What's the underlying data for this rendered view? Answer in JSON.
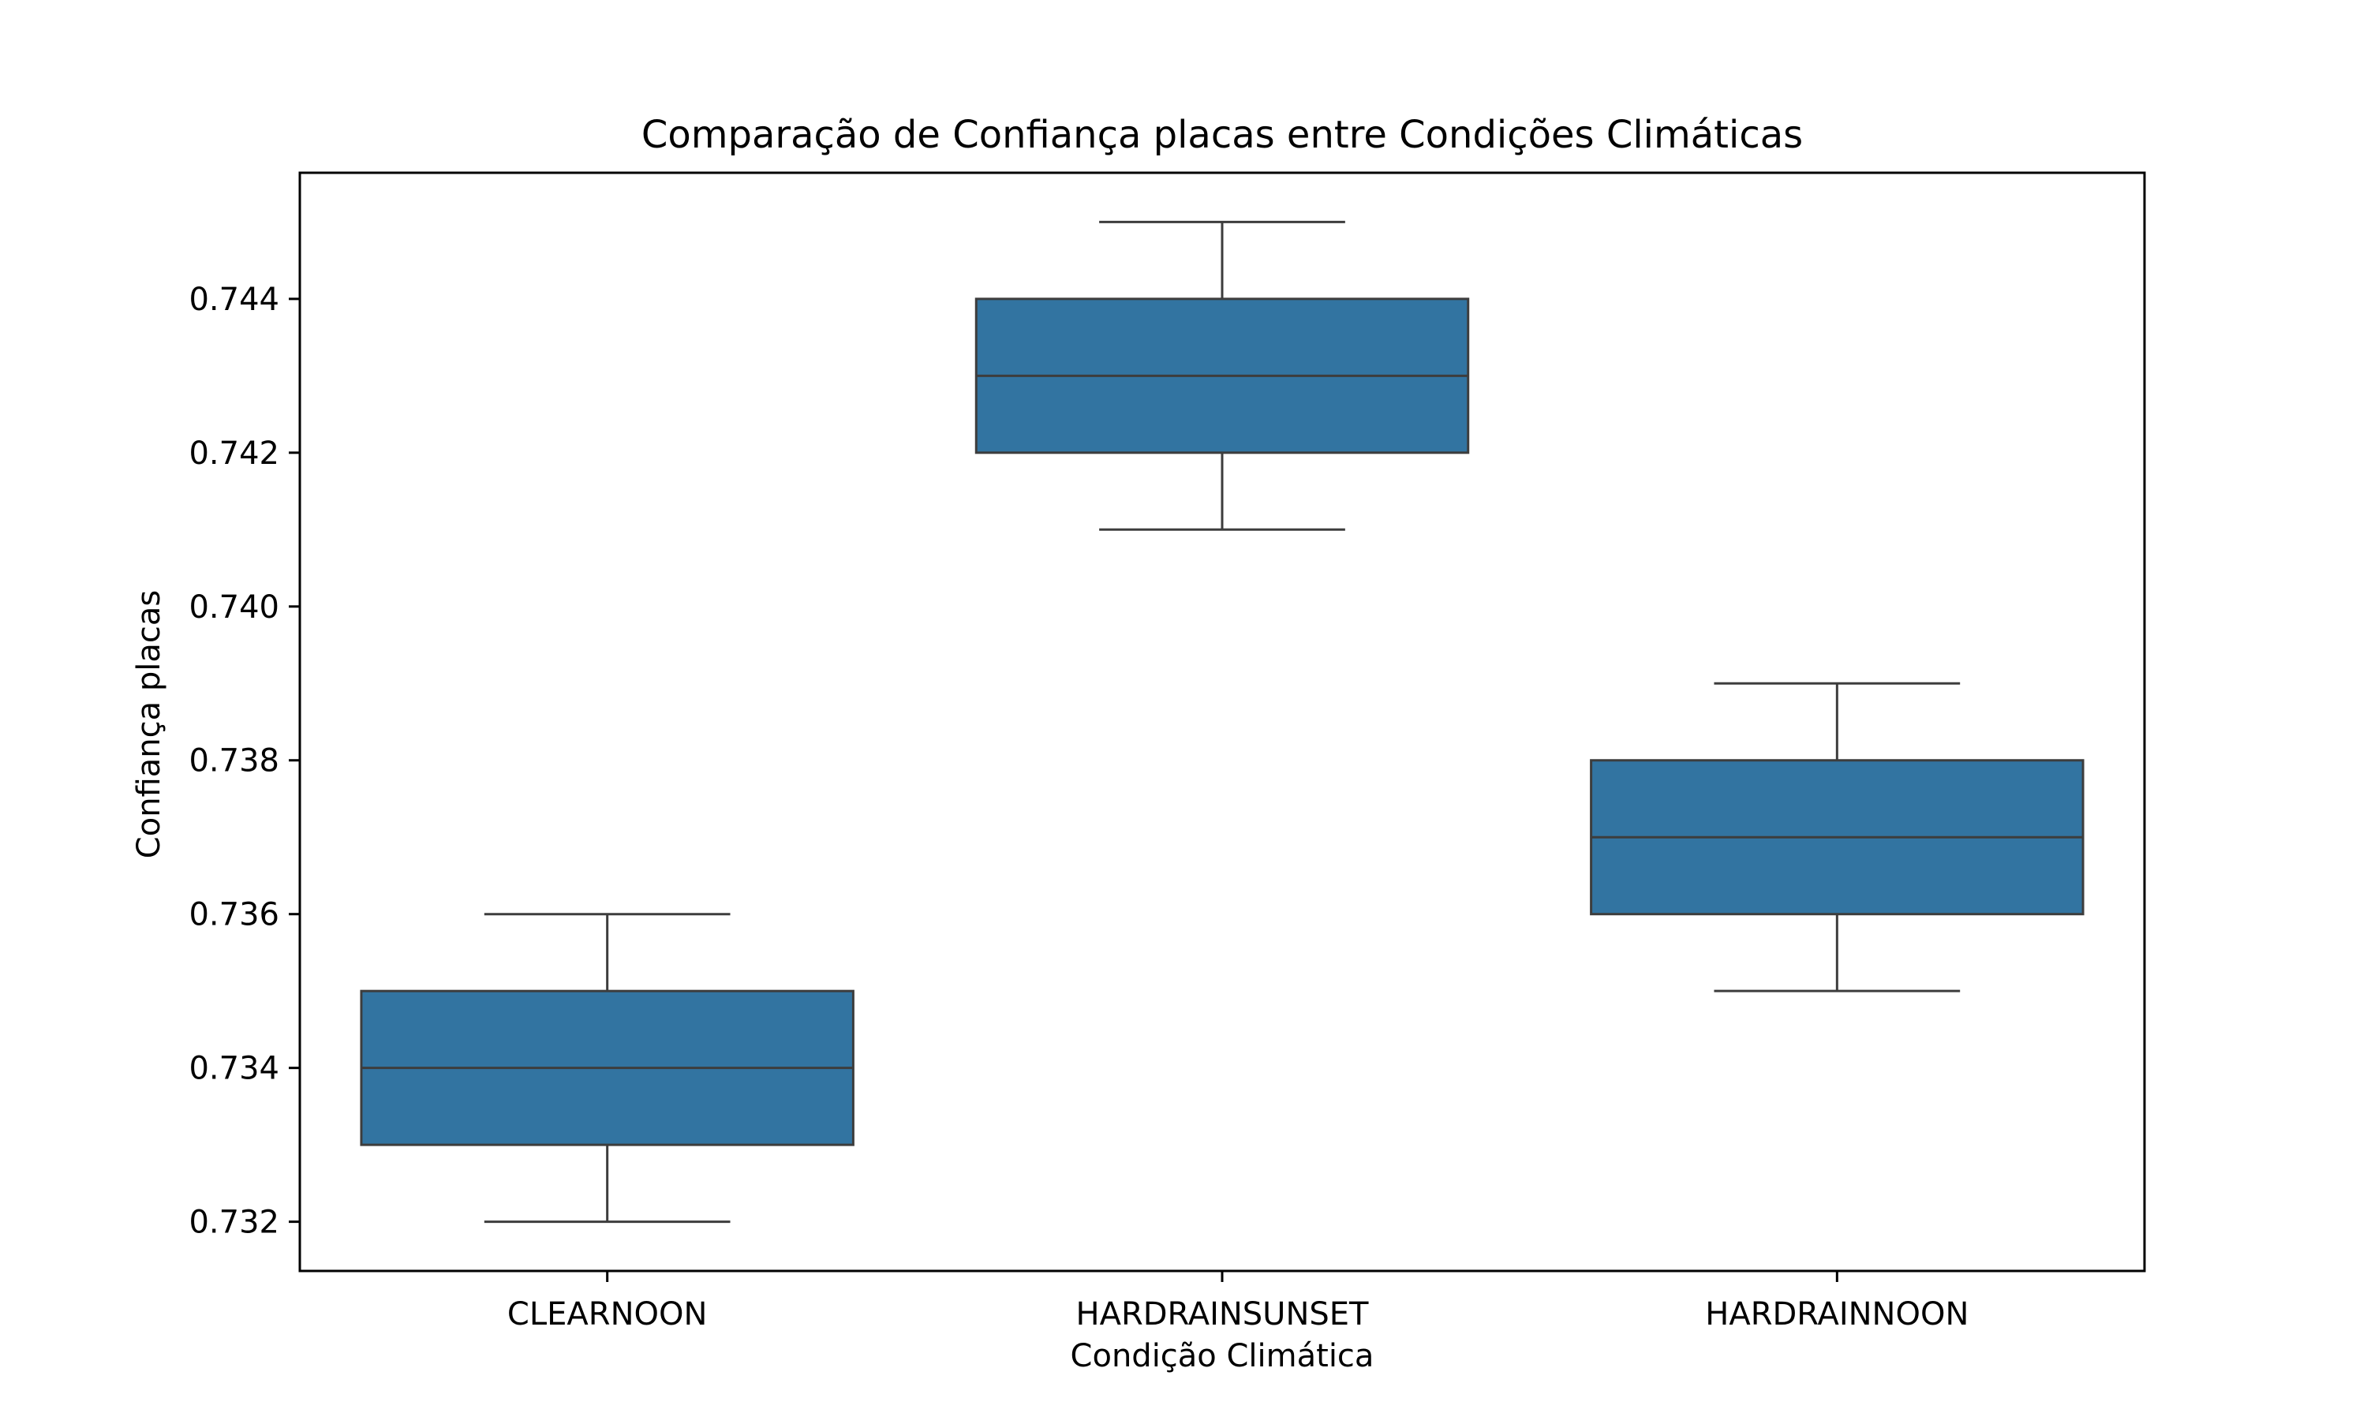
{
  "chart_data": {
    "type": "boxplot",
    "title": "Comparação de Confiança placas entre Condições Climáticas",
    "xlabel": "Condição Climática",
    "ylabel": "Confiança placas",
    "categories": [
      "CLEARNOON",
      "HARDRAINSUNSET",
      "HARDRAINNOON"
    ],
    "boxes": [
      {
        "category": "CLEARNOON",
        "whisker_low": 0.732,
        "q1": 0.733,
        "median": 0.734,
        "q3": 0.735,
        "whisker_high": 0.736
      },
      {
        "category": "HARDRAINSUNSET",
        "whisker_low": 0.741,
        "q1": 0.742,
        "median": 0.743,
        "q3": 0.744,
        "whisker_high": 0.745
      },
      {
        "category": "HARDRAINNOON",
        "whisker_low": 0.735,
        "q1": 0.736,
        "median": 0.737,
        "q3": 0.738,
        "whisker_high": 0.739
      }
    ],
    "yticks": [
      0.732,
      0.734,
      0.736,
      0.738,
      0.74,
      0.742,
      0.744
    ],
    "ytick_labels": [
      "0.732",
      "0.734",
      "0.736",
      "0.738",
      "0.740",
      "0.742",
      "0.744"
    ],
    "ylim": [
      0.73136,
      0.74564
    ],
    "grid": false,
    "colors": {
      "box_fill": "#3274a1",
      "box_edge": "#3d3d3d"
    }
  }
}
